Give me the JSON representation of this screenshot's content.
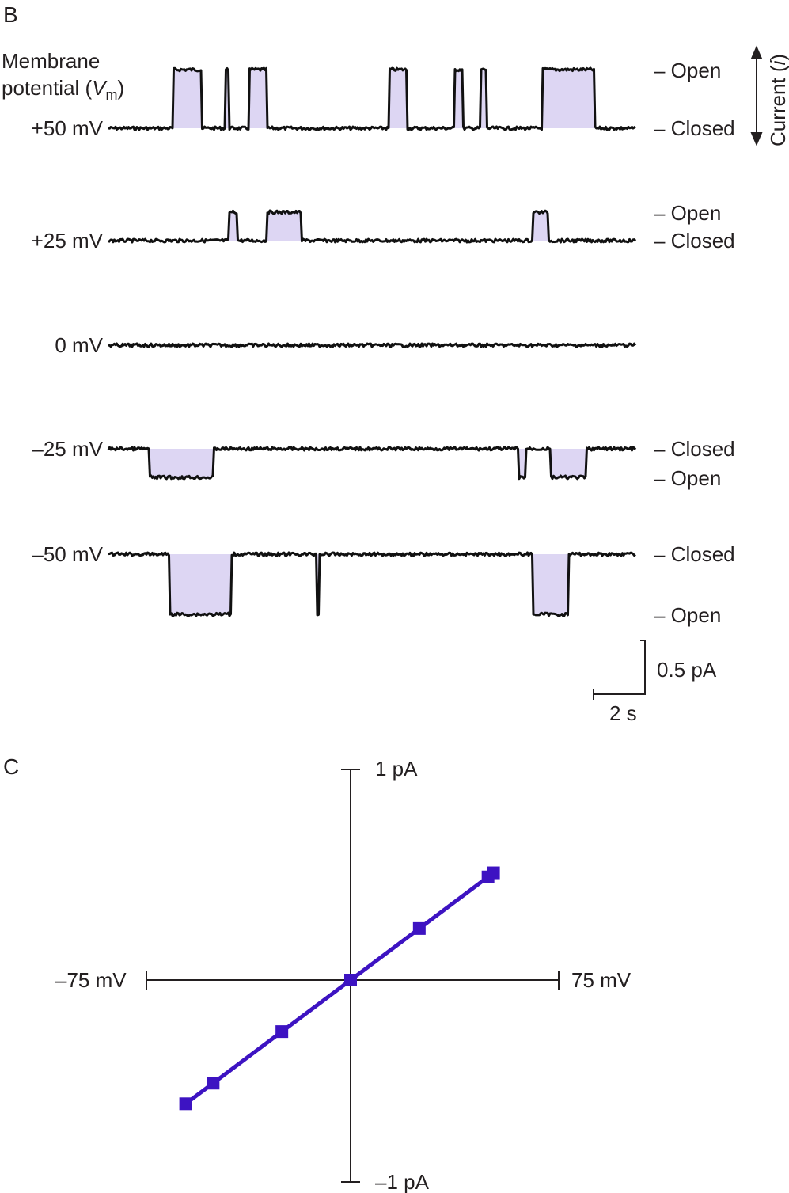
{
  "panel_b": {
    "panel_label": "B",
    "potential_label_line1": "Membrane",
    "potential_label_line2": "potential (",
    "potential_label_sym": "V",
    "potential_label_sub": "m",
    "potential_label_end": ")",
    "current_label": "Current (",
    "current_label_sym": "i",
    "current_label_end": ")",
    "open_label": "– Open",
    "closed_label": "– Closed",
    "traces": [
      {
        "voltage": "+50 mV",
        "voltage_mV": 50,
        "has_open_label": true,
        "has_closed_label": true,
        "openings_s": [
          [
            1.1,
            1.6
          ],
          [
            2.0,
            2.05
          ],
          [
            2.4,
            2.7
          ],
          [
            4.8,
            5.1
          ],
          [
            5.9,
            6.05
          ],
          [
            6.35,
            6.45
          ],
          [
            7.4,
            8.3
          ]
        ]
      },
      {
        "voltage": "+25 mV",
        "voltage_mV": 25,
        "has_open_label": true,
        "has_closed_label": true,
        "openings_s": [
          [
            2.05,
            2.2
          ],
          [
            2.7,
            3.3
          ],
          [
            7.25,
            7.5
          ]
        ]
      },
      {
        "voltage": "0 mV",
        "voltage_mV": 0,
        "has_open_label": false,
        "has_closed_label": false,
        "openings_s": []
      },
      {
        "voltage": "–25 mV",
        "voltage_mV": -25,
        "has_open_label": true,
        "has_closed_label": true,
        "openings_s": [
          [
            0.7,
            1.8
          ],
          [
            7.0,
            7.12
          ],
          [
            7.55,
            8.15
          ]
        ]
      },
      {
        "voltage": "–50 mV",
        "voltage_mV": -50,
        "has_open_label": true,
        "has_closed_label": true,
        "openings_s": [
          [
            1.05,
            2.1
          ],
          [
            3.55,
            3.6
          ],
          [
            7.25,
            7.85
          ]
        ]
      }
    ],
    "scale_current": "0.5 pA",
    "scale_time": "2 s"
  },
  "chart_data": {
    "panel_label": "C",
    "type": "line",
    "x": [
      -50,
      -25,
      0,
      25,
      50
    ],
    "y": [
      -0.5,
      -0.25,
      0,
      0.25,
      0.5
    ],
    "series": [
      {
        "x": [
          -50,
          -25,
          0,
          25,
          50
        ],
        "y": [
          -0.5,
          -0.25,
          0,
          0.25,
          0.5
        ]
      }
    ],
    "x_unit": "mV",
    "y_unit": "pA",
    "xlim": [
      -75,
      75
    ],
    "ylim": [
      -1,
      1
    ],
    "x_min_label": "–75 mV",
    "x_max_label": "75 mV",
    "y_max_label": "1 pA",
    "y_min_label": "–1 pA",
    "grid": false,
    "colors": {
      "line": "#3d13c2",
      "marker": "#3d13c2",
      "axes": "#231f20",
      "shade": "#ddd6f3",
      "trace": "#111111"
    }
  }
}
